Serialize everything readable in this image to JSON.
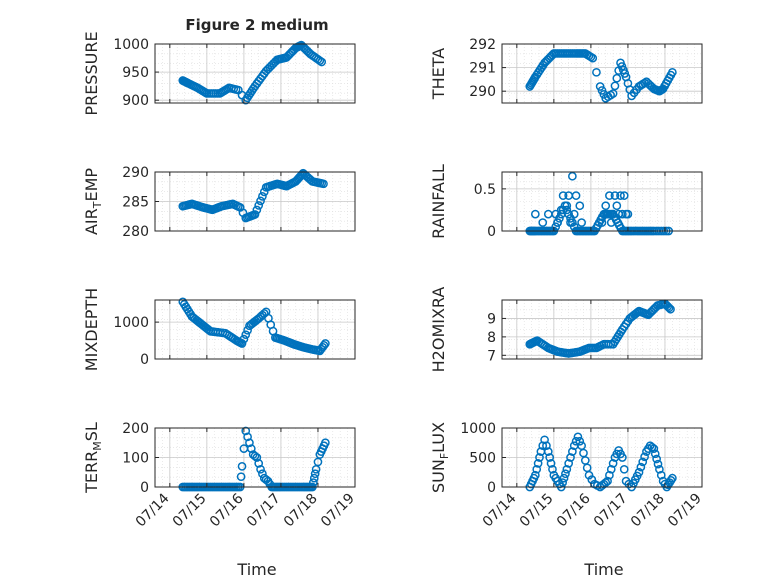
{
  "figure": {
    "title": "Figure 2 medium"
  },
  "colors": {
    "marker": "#0072BD",
    "axis": "#262626",
    "grid": "#c8c8c8",
    "background": "#ffffff"
  },
  "chart_data": [
    {
      "type": "scatter",
      "ylabel": "PRESSURE",
      "ylim": [
        895,
        1000
      ],
      "yticks": [
        900,
        950,
        1000
      ],
      "ytick_labels": [
        "900",
        "950",
        "1000"
      ],
      "xtick_labels": [
        "07/14",
        "07/15",
        "07/16",
        "07/17",
        "07/18",
        "07/19"
      ],
      "grid": true,
      "minor_grid": true,
      "anchors": [
        [
          0,
          0.35,
          935
        ],
        [
          6,
          0.5,
          930
        ],
        [
          12,
          0.75,
          922
        ],
        [
          18,
          1,
          912
        ],
        [
          24,
          1.35,
          912
        ],
        [
          30,
          1.6,
          922
        ],
        [
          34,
          1.85,
          918
        ],
        [
          36,
          2.05,
          900
        ],
        [
          42,
          2.3,
          925
        ],
        [
          48,
          2.6,
          952
        ],
        [
          54,
          2.9,
          972
        ],
        [
          60,
          3.15,
          976
        ],
        [
          66,
          3.4,
          993
        ],
        [
          72,
          3.55,
          998
        ],
        [
          78,
          3.8,
          982
        ],
        [
          84,
          4.1,
          968
        ]
      ]
    },
    {
      "type": "scatter",
      "ylabel": "THETA",
      "ylim": [
        289.5,
        292
      ],
      "yticks": [
        290,
        291,
        292
      ],
      "ytick_labels": [
        "290",
        "291",
        "292"
      ],
      "xtick_labels": [
        "07/14",
        "07/15",
        "07/16",
        "07/17",
        "07/18",
        "07/19"
      ],
      "grid": true,
      "minor_grid": true,
      "anchors": [
        [
          0,
          0.35,
          290.2
        ],
        [
          6,
          0.5,
          290.6
        ],
        [
          12,
          0.75,
          291.2
        ],
        [
          18,
          1,
          291.6
        ],
        [
          24,
          1.3,
          291.6
        ],
        [
          30,
          1.6,
          291.6
        ],
        [
          36,
          1.85,
          291.6
        ],
        [
          40,
          2.05,
          291.4
        ],
        [
          42,
          2.25,
          290.2
        ],
        [
          45,
          2.4,
          289.7
        ],
        [
          48,
          2.6,
          289.9
        ],
        [
          52,
          2.8,
          291.2
        ],
        [
          56,
          2.95,
          290.6
        ],
        [
          59,
          3.1,
          289.8
        ],
        [
          62,
          3.3,
          290.2
        ],
        [
          66,
          3.5,
          290.4
        ],
        [
          70,
          3.7,
          290.1
        ],
        [
          74,
          3.85,
          290.0
        ],
        [
          78,
          3.95,
          290.1
        ],
        [
          84,
          4.2,
          290.8
        ]
      ]
    },
    {
      "type": "scatter",
      "ylabel": "AIR_TEMP",
      "ylim": [
        280,
        290
      ],
      "yticks": [
        280,
        285,
        290
      ],
      "ytick_labels": [
        "280",
        "285",
        "290"
      ],
      "xtick_labels": [
        "07/14",
        "07/15",
        "07/16",
        "07/17",
        "07/18",
        "07/19"
      ],
      "grid": true,
      "minor_grid": true,
      "anchors": [
        [
          0,
          0.35,
          284.2
        ],
        [
          6,
          0.6,
          284.6
        ],
        [
          12,
          0.9,
          284.0
        ],
        [
          18,
          1.15,
          283.6
        ],
        [
          24,
          1.4,
          284.2
        ],
        [
          30,
          1.7,
          284.6
        ],
        [
          34,
          1.9,
          284.0
        ],
        [
          36,
          2.05,
          282.2
        ],
        [
          42,
          2.3,
          282.8
        ],
        [
          48,
          2.6,
          287.4
        ],
        [
          54,
          2.9,
          288.0
        ],
        [
          60,
          3.15,
          287.6
        ],
        [
          66,
          3.4,
          288.4
        ],
        [
          72,
          3.6,
          289.8
        ],
        [
          78,
          3.85,
          288.4
        ],
        [
          84,
          4.15,
          288.0
        ]
      ]
    },
    {
      "type": "scatter",
      "ylabel": "RAINFALL",
      "ylim": [
        0,
        0.7
      ],
      "yticks": [
        0,
        0.5
      ],
      "ytick_labels": [
        "0",
        "0.5"
      ],
      "xtick_labels": [
        "07/14",
        "07/15",
        "07/16",
        "07/17",
        "07/18",
        "07/19"
      ],
      "grid": true,
      "minor_grid": true,
      "anchors": [
        [
          0,
          0.35,
          0
        ],
        [
          6,
          0.5,
          0
        ],
        [
          12,
          0.75,
          0
        ],
        [
          18,
          1.0,
          0
        ],
        [
          24,
          1.3,
          0.3
        ],
        [
          30,
          1.6,
          0
        ],
        [
          36,
          1.85,
          0
        ],
        [
          42,
          2.1,
          0
        ],
        [
          48,
          2.35,
          0.2
        ],
        [
          54,
          2.6,
          0.2
        ],
        [
          60,
          2.85,
          0
        ],
        [
          66,
          3.1,
          0
        ],
        [
          72,
          3.4,
          0
        ],
        [
          78,
          3.7,
          0
        ],
        [
          84,
          4.1,
          0
        ]
      ],
      "extra_points": [
        [
          0.5,
          0.2
        ],
        [
          0.7,
          0.1
        ],
        [
          0.85,
          0.2
        ],
        [
          1.05,
          0.2
        ],
        [
          1.1,
          0.1
        ],
        [
          1.2,
          0.25
        ],
        [
          1.25,
          0.42
        ],
        [
          1.35,
          0.3
        ],
        [
          1.4,
          0.42
        ],
        [
          1.45,
          0.1
        ],
        [
          1.5,
          0.65
        ],
        [
          1.55,
          0.2
        ],
        [
          1.6,
          0.42
        ],
        [
          1.7,
          0.3
        ],
        [
          1.75,
          0.1
        ],
        [
          2.3,
          0.1
        ],
        [
          2.4,
          0.3
        ],
        [
          2.45,
          0.2
        ],
        [
          2.5,
          0.42
        ],
        [
          2.55,
          0.1
        ],
        [
          2.6,
          0.2
        ],
        [
          2.65,
          0.42
        ],
        [
          2.7,
          0.3
        ],
        [
          2.75,
          0.2
        ],
        [
          2.8,
          0.42
        ],
        [
          2.85,
          0.2
        ],
        [
          2.9,
          0.42
        ],
        [
          2.95,
          0.2
        ],
        [
          3.0,
          0.2
        ]
      ]
    },
    {
      "type": "scatter",
      "ylabel": "MIXDEPTH",
      "ylim": [
        0,
        1600
      ],
      "yticks": [
        0,
        1000
      ],
      "ytick_labels": [
        "0",
        "1000"
      ],
      "xtick_labels": [
        "07/14",
        "07/15",
        "07/16",
        "07/17",
        "07/18",
        "07/19"
      ],
      "grid": true,
      "minor_grid": true,
      "anchors": [
        [
          0,
          0.35,
          1550
        ],
        [
          6,
          0.6,
          1150
        ],
        [
          12,
          0.85,
          950
        ],
        [
          18,
          1.1,
          750
        ],
        [
          24,
          1.5,
          700
        ],
        [
          30,
          1.8,
          500
        ],
        [
          34,
          1.95,
          420
        ],
        [
          38,
          2.15,
          900
        ],
        [
          44,
          2.4,
          1100
        ],
        [
          48,
          2.6,
          1280
        ],
        [
          52,
          2.85,
          580
        ],
        [
          58,
          3.1,
          500
        ],
        [
          64,
          3.35,
          400
        ],
        [
          70,
          3.6,
          320
        ],
        [
          76,
          3.85,
          260
        ],
        [
          80,
          4.05,
          220
        ],
        [
          84,
          4.2,
          420
        ]
      ]
    },
    {
      "type": "scatter",
      "ylabel": "H2OMIXRA",
      "ylim": [
        6.8,
        10
      ],
      "yticks": [
        7,
        8,
        9
      ],
      "ytick_labels": [
        "7",
        "8",
        "9"
      ],
      "xtick_labels": [
        "07/14",
        "07/15",
        "07/16",
        "07/17",
        "07/18",
        "07/19"
      ],
      "grid": true,
      "minor_grid": true,
      "anchors": [
        [
          0,
          0.35,
          7.6
        ],
        [
          6,
          0.55,
          7.8
        ],
        [
          12,
          0.85,
          7.4
        ],
        [
          18,
          1.1,
          7.2
        ],
        [
          24,
          1.4,
          7.1
        ],
        [
          30,
          1.7,
          7.2
        ],
        [
          36,
          1.95,
          7.4
        ],
        [
          40,
          2.15,
          7.4
        ],
        [
          44,
          2.35,
          7.6
        ],
        [
          48,
          2.6,
          7.6
        ],
        [
          54,
          2.85,
          8.4
        ],
        [
          58,
          3.05,
          9.0
        ],
        [
          64,
          3.3,
          9.4
        ],
        [
          70,
          3.55,
          9.2
        ],
        [
          76,
          3.8,
          9.7
        ],
        [
          80,
          4.0,
          9.8
        ],
        [
          84,
          4.15,
          9.5
        ]
      ]
    },
    {
      "type": "scatter",
      "ylabel": "TERR_MSL",
      "ylim": [
        0,
        200
      ],
      "yticks": [
        0,
        100,
        200
      ],
      "ytick_labels": [
        "0",
        "100",
        "200"
      ],
      "xtick_labels": [
        "07/14",
        "07/15",
        "07/16",
        "07/17",
        "07/18",
        "07/19"
      ],
      "grid": true,
      "minor_grid": true,
      "anchors": [
        [
          0,
          0.35,
          0
        ],
        [
          10,
          0.8,
          0
        ],
        [
          20,
          1.3,
          0
        ],
        [
          28,
          1.7,
          0
        ],
        [
          32,
          1.9,
          0
        ],
        [
          34,
          1.95,
          70
        ],
        [
          36,
          2.05,
          190
        ],
        [
          38,
          2.15,
          150
        ],
        [
          40,
          2.25,
          110
        ],
        [
          42,
          2.35,
          100
        ],
        [
          44,
          2.45,
          60
        ],
        [
          46,
          2.55,
          30
        ],
        [
          48,
          2.65,
          20
        ],
        [
          50,
          2.75,
          0
        ],
        [
          56,
          3.0,
          0
        ],
        [
          62,
          3.3,
          0
        ],
        [
          68,
          3.6,
          0
        ],
        [
          74,
          3.85,
          0
        ],
        [
          78,
          3.95,
          60
        ],
        [
          80,
          4.05,
          110
        ],
        [
          84,
          4.2,
          150
        ]
      ]
    },
    {
      "type": "scatter",
      "ylabel": "SUN_FLUX",
      "ylim": [
        0,
        1000
      ],
      "yticks": [
        0,
        500,
        1000
      ],
      "ytick_labels": [
        "0",
        "500",
        "1000"
      ],
      "xtick_labels": [
        "07/14",
        "07/15",
        "07/16",
        "07/17",
        "07/18",
        "07/19"
      ],
      "grid": true,
      "minor_grid": true,
      "anchors": [
        [
          0,
          0.35,
          0
        ],
        [
          4,
          0.5,
          200
        ],
        [
          8,
          0.65,
          600
        ],
        [
          10,
          0.75,
          800
        ],
        [
          12,
          0.85,
          600
        ],
        [
          16,
          1.0,
          200
        ],
        [
          20,
          1.2,
          0
        ],
        [
          24,
          1.35,
          300
        ],
        [
          28,
          1.55,
          700
        ],
        [
          30,
          1.65,
          850
        ],
        [
          32,
          1.75,
          700
        ],
        [
          36,
          1.95,
          200
        ],
        [
          38,
          2.1,
          50
        ],
        [
          40,
          2.25,
          0
        ],
        [
          44,
          2.45,
          100
        ],
        [
          48,
          2.65,
          500
        ],
        [
          50,
          2.75,
          620
        ],
        [
          52,
          2.85,
          500
        ],
        [
          54,
          2.95,
          100
        ],
        [
          56,
          3.1,
          0
        ],
        [
          60,
          3.3,
          250
        ],
        [
          64,
          3.5,
          600
        ],
        [
          66,
          3.6,
          700
        ],
        [
          68,
          3.7,
          650
        ],
        [
          72,
          3.85,
          300
        ],
        [
          74,
          3.95,
          100
        ],
        [
          76,
          4.05,
          0
        ],
        [
          80,
          4.2,
          150
        ]
      ]
    }
  ],
  "labels": {
    "xlabel_left": "Time",
    "xlabel_right": "Time"
  }
}
